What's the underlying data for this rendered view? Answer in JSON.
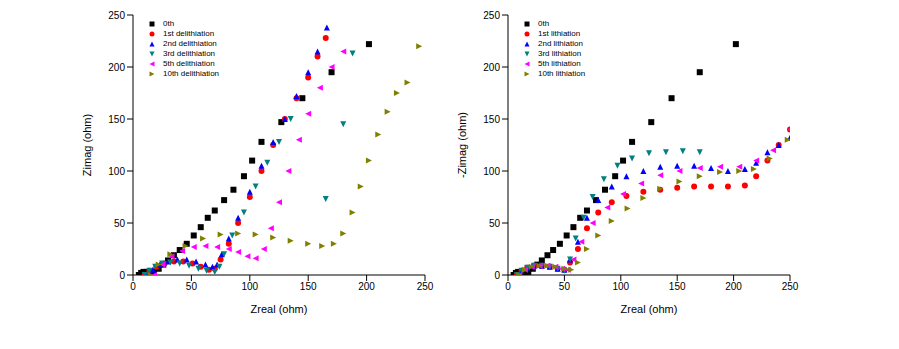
{
  "chart_data": [
    {
      "type": "scatter",
      "x_label": "Zreal (ohm)",
      "y_label": "Zimag (ohm)",
      "xlim": [
        0,
        250
      ],
      "ylim": [
        0,
        250
      ],
      "xticks": [
        0,
        50,
        100,
        150,
        200,
        250
      ],
      "yticks": [
        0,
        50,
        100,
        150,
        200,
        250
      ],
      "legend": "upper left",
      "series": [
        {
          "name": "0th",
          "color": "#000000",
          "marker": "square",
          "x": [
            5,
            7,
            9,
            12,
            15,
            18,
            22,
            26,
            30,
            35,
            40,
            46,
            52,
            58,
            64,
            70,
            78,
            86,
            95,
            102,
            110,
            127,
            145,
            170,
            202
          ],
          "values": [
            0,
            2,
            3,
            3,
            2,
            3,
            6,
            10,
            14,
            19,
            24,
            30,
            38,
            46,
            55,
            62,
            72,
            82,
            95,
            110,
            128,
            147,
            170,
            195,
            222
          ]
        },
        {
          "name": "1st delithiation",
          "color": "#ff0000",
          "marker": "circle",
          "x": [
            10,
            14,
            20,
            27,
            35,
            43,
            51,
            58,
            65,
            70,
            75,
            82,
            90,
            100,
            110,
            120,
            130,
            140,
            150,
            158,
            165
          ],
          "values": [
            0,
            4,
            8,
            11,
            13,
            13,
            11,
            8,
            5,
            6,
            15,
            30,
            50,
            75,
            100,
            125,
            150,
            170,
            190,
            210,
            228
          ]
        },
        {
          "name": "2nd delithiation",
          "color": "#0000ff",
          "marker": "triangle-up",
          "x": [
            12,
            17,
            23,
            30,
            38,
            46,
            54,
            62,
            68,
            72,
            76,
            82,
            90,
            100,
            110,
            120,
            130,
            140,
            150,
            158,
            166
          ],
          "values": [
            0,
            5,
            10,
            13,
            15,
            15,
            13,
            10,
            8,
            10,
            20,
            35,
            55,
            80,
            105,
            128,
            150,
            172,
            195,
            215,
            238
          ]
        },
        {
          "name": "3rd delithiation",
          "color": "#008080",
          "marker": "triangle-down",
          "x": [
            10,
            14,
            19,
            25,
            32,
            40,
            48,
            56,
            63,
            70,
            74,
            78,
            85,
            95,
            105,
            115,
            125,
            135,
            165,
            180,
            188
          ],
          "values": [
            0,
            4,
            8,
            11,
            12,
            11,
            9,
            6,
            4,
            3,
            8,
            20,
            38,
            60,
            85,
            108,
            128,
            150,
            73,
            145,
            213
          ]
        },
        {
          "name": "5th delithiation",
          "color": "#ff00ff",
          "marker": "triangle-left",
          "x": [
            18,
            25,
            33,
            42,
            52,
            62,
            72,
            82,
            90,
            98,
            105,
            112,
            118,
            125,
            133,
            142,
            150,
            160,
            170,
            180
          ],
          "values": [
            0,
            10,
            18,
            23,
            27,
            28,
            27,
            25,
            22,
            18,
            16,
            25,
            45,
            70,
            100,
            130,
            155,
            180,
            200,
            215
          ]
        },
        {
          "name": "10th delithiation",
          "color": "#808000",
          "marker": "triangle-right",
          "x": [
            15,
            22,
            32,
            45,
            60,
            75,
            90,
            105,
            120,
            135,
            150,
            162,
            172,
            180,
            188,
            195,
            202,
            210,
            218,
            226,
            235,
            245
          ],
          "values": [
            0,
            10,
            20,
            28,
            35,
            39,
            40,
            39,
            36,
            33,
            30,
            28,
            30,
            40,
            60,
            85,
            110,
            135,
            157,
            175,
            185,
            220
          ]
        }
      ]
    },
    {
      "type": "scatter",
      "x_label": "Zreal (ohm)",
      "y_label": "-Zimag (ohm)",
      "xlim": [
        0,
        250
      ],
      "ylim": [
        0,
        250
      ],
      "xticks": [
        0,
        50,
        100,
        150,
        200,
        250
      ],
      "yticks": [
        0,
        50,
        100,
        150,
        200,
        250
      ],
      "legend": "upper left",
      "series": [
        {
          "name": "0th",
          "color": "#000000",
          "marker": "square",
          "x": [
            5,
            7,
            9,
            12,
            15,
            18,
            22,
            26,
            30,
            35,
            40,
            46,
            52,
            58,
            64,
            70,
            78,
            86,
            95,
            102,
            110,
            127,
            145,
            170,
            202
          ],
          "values": [
            0,
            2,
            3,
            3,
            2,
            3,
            6,
            10,
            14,
            19,
            24,
            30,
            38,
            46,
            55,
            62,
            72,
            82,
            95,
            110,
            128,
            147,
            170,
            195,
            222
          ]
        },
        {
          "name": "1st lithiation",
          "color": "#ff0000",
          "marker": "circle",
          "x": [
            8,
            12,
            17,
            23,
            30,
            37,
            44,
            50,
            55,
            62,
            70,
            80,
            92,
            105,
            120,
            135,
            150,
            165,
            180,
            195,
            210,
            220,
            230,
            240,
            250
          ],
          "values": [
            0,
            4,
            7,
            9,
            9,
            8,
            6,
            5,
            12,
            25,
            45,
            60,
            70,
            76,
            80,
            82,
            84,
            85,
            85,
            85,
            86,
            95,
            110,
            125,
            140
          ]
        },
        {
          "name": "2nd lithiation",
          "color": "#0000ff",
          "marker": "triangle-up",
          "x": [
            8,
            12,
            17,
            23,
            30,
            37,
            44,
            50,
            55,
            62,
            70,
            80,
            92,
            105,
            120,
            135,
            150,
            165,
            180,
            195,
            210,
            220,
            230,
            240,
            250
          ],
          "values": [
            0,
            4,
            7,
            9,
            9,
            8,
            6,
            5,
            15,
            32,
            55,
            72,
            85,
            95,
            100,
            104,
            105,
            105,
            103,
            100,
            102,
            108,
            118,
            125,
            132
          ]
        },
        {
          "name": "3rd lithiation",
          "color": "#008080",
          "marker": "triangle-down",
          "x": [
            8,
            12,
            17,
            23,
            30,
            37,
            44,
            50,
            55,
            60,
            67,
            75,
            85,
            97,
            110,
            125,
            140,
            155,
            170
          ],
          "values": [
            0,
            4,
            7,
            9,
            9,
            8,
            6,
            4,
            15,
            35,
            55,
            75,
            92,
            105,
            112,
            117,
            118,
            119,
            118
          ]
        },
        {
          "name": "5th lithiation",
          "color": "#ff00ff",
          "marker": "triangle-left",
          "x": [
            10,
            15,
            21,
            28,
            35,
            42,
            48,
            53,
            58,
            65,
            75,
            88,
            102,
            118,
            135,
            152,
            170,
            188,
            205,
            220,
            235,
            250
          ],
          "values": [
            0,
            5,
            8,
            9,
            9,
            8,
            6,
            5,
            15,
            32,
            50,
            65,
            78,
            88,
            96,
            100,
            103,
            104,
            104,
            110,
            120,
            140
          ]
        },
        {
          "name": "10th lithiation",
          "color": "#808000",
          "marker": "triangle-right",
          "x": [
            10,
            15,
            21,
            28,
            35,
            42,
            50,
            56,
            62,
            70,
            80,
            92,
            106,
            120,
            135,
            152,
            170,
            188,
            205,
            218,
            232,
            248
          ],
          "values": [
            0,
            5,
            8,
            9,
            9,
            8,
            6,
            5,
            12,
            25,
            38,
            52,
            64,
            74,
            83,
            90,
            95,
            99,
            100,
            102,
            112,
            130
          ]
        }
      ]
    }
  ]
}
